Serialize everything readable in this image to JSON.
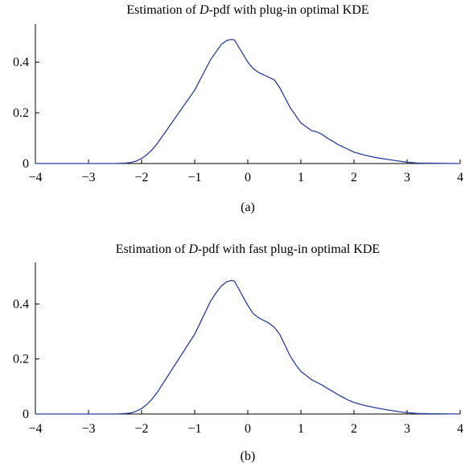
{
  "chart_data": [
    {
      "type": "line",
      "title_prefix": "Estimation of ",
      "title_italic": "D",
      "title_suffix": "-pdf with plug-in optimal KDE",
      "caption": "(a)",
      "xlabel": "",
      "ylabel": "",
      "xlim": [
        -4,
        4
      ],
      "ylim": [
        0,
        0.55
      ],
      "xticks": [
        -4,
        -3,
        -2,
        -1,
        0,
        1,
        2,
        3,
        4
      ],
      "xtick_labels": [
        "−4",
        "−3",
        "−2",
        "−1",
        "0",
        "1",
        "2",
        "3",
        "4"
      ],
      "yticks": [
        0,
        0.2,
        0.4
      ],
      "ytick_labels": [
        "0",
        "0.2",
        "0.4"
      ],
      "grid": false,
      "color": "#2a3f9e",
      "series": [
        {
          "x": [
            -4,
            -3,
            -2.5,
            -2.3,
            -2.2,
            -2.1,
            -2.0,
            -1.9,
            -1.8,
            -1.7,
            -1.6,
            -1.5,
            -1.4,
            -1.3,
            -1.2,
            -1.1,
            -1.0,
            -0.9,
            -0.8,
            -0.7,
            -0.6,
            -0.5,
            -0.4,
            -0.35,
            -0.3,
            -0.25,
            -0.2,
            -0.1,
            0.0,
            0.1,
            0.2,
            0.3,
            0.4,
            0.5,
            0.6,
            0.7,
            0.8,
            0.9,
            1.0,
            1.1,
            1.2,
            1.3,
            1.4,
            1.5,
            1.6,
            1.7,
            1.8,
            1.9,
            2.0,
            2.2,
            2.4,
            2.6,
            2.8,
            2.9,
            3.0,
            3.2,
            3.5,
            4.0
          ],
          "y": [
            0,
            0,
            0,
            0.002,
            0.004,
            0.01,
            0.02,
            0.035,
            0.055,
            0.08,
            0.11,
            0.14,
            0.17,
            0.2,
            0.23,
            0.26,
            0.29,
            0.33,
            0.37,
            0.41,
            0.44,
            0.47,
            0.485,
            0.488,
            0.49,
            0.487,
            0.47,
            0.435,
            0.4,
            0.375,
            0.36,
            0.35,
            0.34,
            0.33,
            0.3,
            0.26,
            0.22,
            0.19,
            0.16,
            0.145,
            0.13,
            0.125,
            0.115,
            0.1,
            0.088,
            0.075,
            0.065,
            0.055,
            0.045,
            0.033,
            0.024,
            0.017,
            0.011,
            0.008,
            0.005,
            0.002,
            0.001,
            0
          ]
        }
      ]
    },
    {
      "type": "line",
      "title_prefix": "Estimation of ",
      "title_italic": "D",
      "title_suffix": "-pdf with fast plug-in optimal KDE",
      "caption": "(b)",
      "xlabel": "",
      "ylabel": "",
      "xlim": [
        -4,
        4
      ],
      "ylim": [
        0,
        0.55
      ],
      "xticks": [
        -4,
        -3,
        -2,
        -1,
        0,
        1,
        2,
        3,
        4
      ],
      "xtick_labels": [
        "−4",
        "−3",
        "−2",
        "−1",
        "0",
        "1",
        "2",
        "3",
        "4"
      ],
      "yticks": [
        0,
        0.2,
        0.4
      ],
      "ytick_labels": [
        "0",
        "0.2",
        "0.4"
      ],
      "grid": false,
      "color": "#2a3f9e",
      "series": [
        {
          "x": [
            -4,
            -3,
            -2.5,
            -2.3,
            -2.2,
            -2.1,
            -2.0,
            -1.9,
            -1.8,
            -1.7,
            -1.6,
            -1.5,
            -1.4,
            -1.3,
            -1.2,
            -1.1,
            -1.0,
            -0.9,
            -0.8,
            -0.7,
            -0.6,
            -0.5,
            -0.4,
            -0.35,
            -0.3,
            -0.25,
            -0.2,
            -0.1,
            0.0,
            0.1,
            0.2,
            0.3,
            0.4,
            0.5,
            0.6,
            0.7,
            0.8,
            0.9,
            1.0,
            1.1,
            1.2,
            1.3,
            1.4,
            1.5,
            1.6,
            1.7,
            1.8,
            1.9,
            2.0,
            2.2,
            2.4,
            2.6,
            2.8,
            2.9,
            3.0,
            3.2,
            3.5,
            4.0
          ],
          "y": [
            0,
            0,
            0,
            0.002,
            0.004,
            0.01,
            0.02,
            0.035,
            0.055,
            0.08,
            0.11,
            0.14,
            0.17,
            0.2,
            0.23,
            0.26,
            0.29,
            0.33,
            0.37,
            0.41,
            0.44,
            0.465,
            0.48,
            0.483,
            0.485,
            0.482,
            0.465,
            0.43,
            0.395,
            0.365,
            0.35,
            0.34,
            0.33,
            0.315,
            0.29,
            0.25,
            0.21,
            0.18,
            0.155,
            0.14,
            0.125,
            0.115,
            0.105,
            0.093,
            0.082,
            0.07,
            0.06,
            0.05,
            0.042,
            0.031,
            0.023,
            0.016,
            0.01,
            0.007,
            0.005,
            0.002,
            0.001,
            0
          ]
        }
      ]
    }
  ]
}
